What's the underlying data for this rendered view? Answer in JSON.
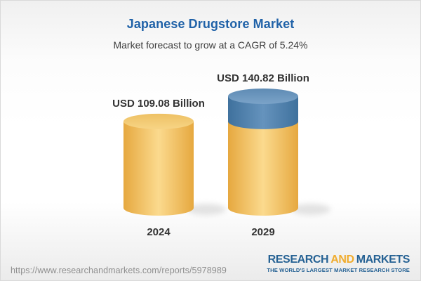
{
  "header": {
    "title": "Japanese Drugstore Market",
    "subtitle": "Market forecast to grow at a CAGR of 5.24%"
  },
  "chart_data": {
    "type": "bar",
    "variant": "3d-cylinder",
    "title": "Japanese Drugstore Market",
    "subtitle": "Market forecast to grow at a CAGR of 5.24%",
    "categories": [
      "2024",
      "2029"
    ],
    "values": [
      109.08,
      140.82
    ],
    "value_labels": [
      "USD 109.08 Billion",
      "USD 140.82 Billion"
    ],
    "unit": "USD Billion",
    "cagr_pct": 5.24,
    "growth_baseline": 109.08,
    "legend": "none",
    "axes": "none",
    "grid": false,
    "colors": {
      "bar_yellow_edge": "#e6a83f",
      "bar_yellow_mid": "#fbda8e",
      "bar_yellow_top_dark": "#eec164",
      "bar_yellow_top_light": "#f7d485",
      "growth_blue_edge": "#3f719d",
      "growth_blue_mid": "#6593bd",
      "growth_blue_top_dark": "#5e8bb4",
      "growth_blue_top_light": "#7ba3c8",
      "label_color": "#333333",
      "shadow_color": "#b7b7b7"
    }
  },
  "footer": {
    "url": "https://www.researchandmarkets.com/reports/5978989",
    "logo": {
      "word1": "RESEARCH",
      "word2": "AND",
      "word3": "MARKETS",
      "tagline": "THE WORLD'S LARGEST MARKET RESEARCH STORE"
    }
  },
  "colors": {
    "title_blue": "#2062a8",
    "subtitle_gray": "#3d3d3d",
    "url_gray": "#8f8f8f",
    "logo_blue": "#266294",
    "logo_gold": "#f0ac2e",
    "frame_border": "#d9d9d9"
  }
}
